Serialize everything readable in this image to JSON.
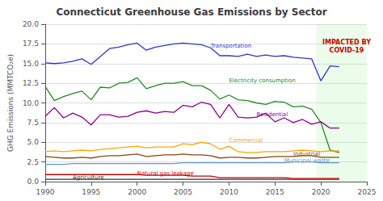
{
  "chart_data": {
    "type": "line",
    "title": "Connecticut Greenhouse Gas Emissions by Sector",
    "ylabel": "GHG Emissions (MMTCO₂e)",
    "xlim": [
      1990,
      2025
    ],
    "xticks": [
      1990,
      1995,
      2000,
      2005,
      2010,
      2015,
      2020,
      2025
    ],
    "ylim": [
      0,
      20.0
    ],
    "yticks": [
      {
        "value": 0,
        "label": "0.0"
      },
      2.5,
      {
        "value": 5,
        "label": "5.0"
      },
      7.5,
      {
        "value": 10,
        "label": "10.0"
      },
      12.5,
      {
        "value": 15,
        "label": "15.0"
      },
      17.5,
      {
        "value": 20,
        "label": "20.0"
      }
    ],
    "grid": true,
    "x": [
      1990,
      1991,
      1992,
      1993,
      1994,
      1995,
      1996,
      1997,
      1998,
      1999,
      2000,
      2001,
      2002,
      2003,
      2004,
      2005,
      2006,
      2007,
      2008,
      2009,
      2010,
      2011,
      2012,
      2013,
      2014,
      2015,
      2016,
      2017,
      2018,
      2019,
      2020,
      2021,
      2022
    ],
    "series": [
      {
        "name": "Transportation",
        "color": "#3333cc",
        "values": [
          15.1,
          15.0,
          15.1,
          15.3,
          15.6,
          14.9,
          15.9,
          16.9,
          17.1,
          17.4,
          17.6,
          16.7,
          17.1,
          17.3,
          17.5,
          17.6,
          17.5,
          17.4,
          17.0,
          16.0,
          16.0,
          15.9,
          16.2,
          15.9,
          16.1,
          15.9,
          16.0,
          15.8,
          15.7,
          15.6,
          12.8,
          14.7,
          14.6
        ]
      },
      {
        "name": "Electricity consumption",
        "color": "#228B22",
        "values": [
          12.1,
          10.3,
          10.8,
          11.2,
          11.5,
          10.4,
          12.0,
          11.9,
          12.5,
          12.6,
          13.2,
          11.8,
          12.2,
          12.5,
          12.5,
          12.7,
          12.2,
          12.2,
          11.6,
          10.5,
          11.0,
          10.4,
          10.3,
          10.0,
          9.8,
          10.2,
          10.1,
          9.5,
          9.6,
          9.2,
          7.5,
          4.0,
          3.7
        ]
      },
      {
        "name": "Residential",
        "color": "#8B008B",
        "values": [
          8.3,
          9.4,
          8.1,
          8.7,
          8.2,
          7.2,
          8.5,
          8.5,
          8.2,
          8.3,
          8.8,
          9.0,
          8.7,
          8.9,
          8.8,
          9.7,
          9.5,
          10.1,
          9.8,
          8.1,
          9.8,
          8.2,
          8.1,
          8.2,
          8.7,
          7.6,
          8.1,
          7.5,
          7.9,
          7.3,
          7.6,
          6.8,
          6.8
        ]
      },
      {
        "name": "Commercial",
        "color": "#FFA500",
        "values": [
          3.8,
          3.9,
          3.8,
          3.9,
          4.0,
          3.9,
          4.1,
          4.2,
          4.3,
          4.4,
          4.5,
          4.3,
          4.4,
          4.4,
          4.4,
          4.8,
          4.7,
          5.0,
          4.8,
          4.1,
          4.5,
          3.8,
          3.7,
          3.7,
          3.8,
          3.8,
          3.8,
          3.9,
          4.0,
          3.9,
          3.8,
          3.9,
          3.9
        ]
      },
      {
        "name": "Industrial",
        "color": "#8B4513",
        "values": [
          3.2,
          3.1,
          3.0,
          3.0,
          3.1,
          3.0,
          3.2,
          3.3,
          3.3,
          3.4,
          3.5,
          3.2,
          3.3,
          3.4,
          3.4,
          3.5,
          3.4,
          3.4,
          3.3,
          3.0,
          3.1,
          3.1,
          3.0,
          3.0,
          3.1,
          3.2,
          3.2,
          3.2,
          3.3,
          3.3,
          3.1,
          3.1,
          3.1
        ]
      },
      {
        "name": "Municipal waste",
        "color": "#6699cc",
        "values": [
          2.2,
          2.2,
          2.2,
          2.3,
          2.3,
          2.3,
          2.3,
          2.3,
          2.3,
          2.3,
          2.3,
          2.3,
          2.3,
          2.3,
          2.3,
          2.4,
          2.4,
          2.4,
          2.4,
          2.4,
          2.4,
          2.4,
          2.4,
          2.4,
          2.4,
          2.4,
          2.4,
          2.5,
          2.5,
          2.5,
          2.4,
          2.4,
          2.4
        ]
      },
      {
        "name": "Agriculture",
        "color": "#333333",
        "values": [
          0.3,
          0.3,
          0.3,
          0.3,
          0.3,
          0.3,
          0.3,
          0.3,
          0.3,
          0.3,
          0.3,
          0.3,
          0.3,
          0.3,
          0.3,
          0.3,
          0.3,
          0.3,
          0.3,
          0.3,
          0.3,
          0.3,
          0.3,
          0.3,
          0.3,
          0.3,
          0.3,
          0.3,
          0.3,
          0.3,
          0.3,
          0.3,
          0.3
        ]
      },
      {
        "name": "Natural gas leakage",
        "color": "#cc0000",
        "values": [
          0.9,
          0.9,
          0.9,
          0.9,
          0.9,
          0.9,
          0.9,
          0.9,
          0.9,
          0.9,
          0.9,
          0.8,
          0.8,
          0.8,
          0.8,
          0.8,
          0.7,
          0.7,
          0.7,
          0.5,
          0.5,
          0.5,
          0.5,
          0.5,
          0.5,
          0.5,
          0.5,
          0.4,
          0.4,
          0.4,
          0.4,
          0.4,
          0.4
        ]
      }
    ],
    "spans": [
      {
        "from": 2019.5,
        "to": 2025,
        "color": "#90EE90"
      }
    ],
    "annotations": [
      {
        "text": "Transportation",
        "x": 2008,
        "y": 17.2,
        "color": "#3333cc"
      },
      {
        "text": "Electricity consumption",
        "x": 2010,
        "y": 12.8,
        "color": "#228B22"
      },
      {
        "text": "Residential",
        "x": 2013,
        "y": 8.5,
        "color": "#8B008B"
      },
      {
        "text": "Commercial",
        "x": 2010,
        "y": 5.2,
        "color": "#FFA500"
      },
      {
        "text": "Industrial",
        "x": 2017,
        "y": 3.5,
        "color": "#8B4513"
      },
      {
        "text": "Municipal waste",
        "x": 2016,
        "y": 2.7,
        "color": "#6699cc"
      },
      {
        "text": "Agriculture",
        "x": 1993,
        "y": 0.55,
        "color": "#333333"
      },
      {
        "text": "Natural gas leakage",
        "x": 2000,
        "y": 1.05,
        "color": "#cc0000"
      },
      {
        "text": "IMPACTED BY\nCOVID-19",
        "x": 2022.8,
        "y": 18.2,
        "color": "#cc0000"
      }
    ]
  }
}
